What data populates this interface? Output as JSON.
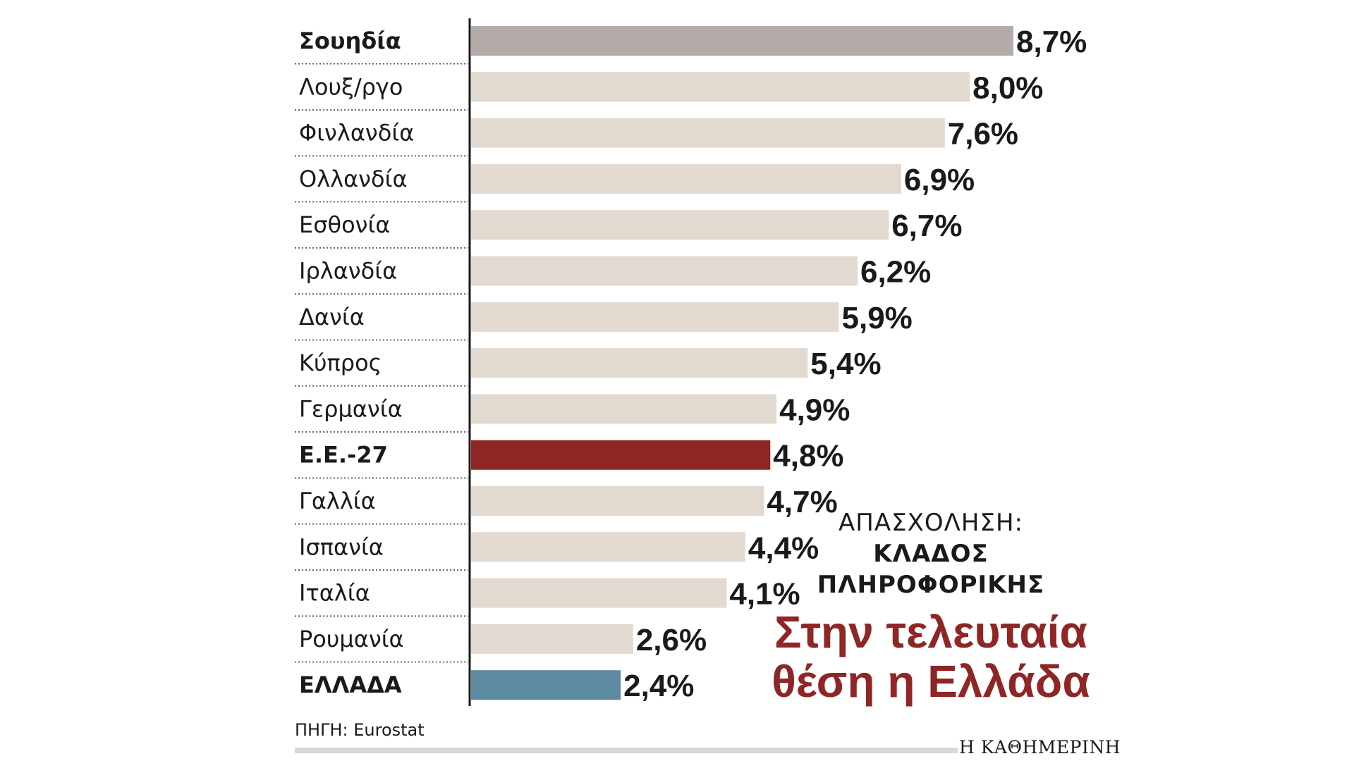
{
  "chart_data": {
    "type": "bar",
    "orientation": "horizontal",
    "categories": [
      "Σουηδία",
      "Λουξ/ργο",
      "Φινλανδία",
      "Ολλανδία",
      "Εσθονία",
      "Ιρλανδία",
      "Δανία",
      "Κύπρος",
      "Γερμανία",
      "Ε.Ε.-27",
      "Γαλλία",
      "Ισπανία",
      "Ιταλία",
      "Ρουμανία",
      "ΕΛΛΑΔΑ"
    ],
    "values": [
      8.7,
      8.0,
      7.6,
      6.9,
      6.7,
      6.2,
      5.9,
      5.4,
      4.9,
      4.8,
      4.7,
      4.4,
      4.1,
      2.6,
      2.4
    ],
    "value_labels": [
      "8,7%",
      "8,0%",
      "7,6%",
      "6,9%",
      "6,7%",
      "6,2%",
      "5,9%",
      "5,4%",
      "4,9%",
      "4,8%",
      "4,7%",
      "4,4%",
      "4,1%",
      "2,6%",
      "2,4%"
    ],
    "bold_categories": [
      "Σουηδία",
      "Ε.Ε.-27",
      "ΕΛΛΑΔΑ"
    ],
    "bar_colors": [
      "#b5acaa",
      "#e2d9d0",
      "#e2d9d0",
      "#e2d9d0",
      "#e2d9d0",
      "#e2d9d0",
      "#e2d9d0",
      "#e2d9d0",
      "#e2d9d0",
      "#8e2626",
      "#e2d9d0",
      "#e2d9d0",
      "#e2d9d0",
      "#e2d9d0",
      "#5d8aa0"
    ],
    "xlim": [
      0,
      8.7
    ],
    "grid": false,
    "legend": "none"
  },
  "headline": {
    "kicker": "ΑΠΑΣΧΟΛΗΣΗ:",
    "topic_line1": "ΚΛΑΔΟΣ",
    "topic_line2": "ΠΛΗΡΟΦΟΡΙΚΗΣ",
    "title_line1": "Στην τελευταία",
    "title_line2": "θέση η Ελλάδα"
  },
  "source": "ΠΗΓΗ: Eurostat",
  "publisher": "Η ΚΑΘΗΜΕΡΙΝΗ",
  "colors": {
    "highlight": "#8e2626",
    "greece": "#5d8aa0",
    "top": "#b5acaa",
    "default": "#e2d9d0"
  }
}
